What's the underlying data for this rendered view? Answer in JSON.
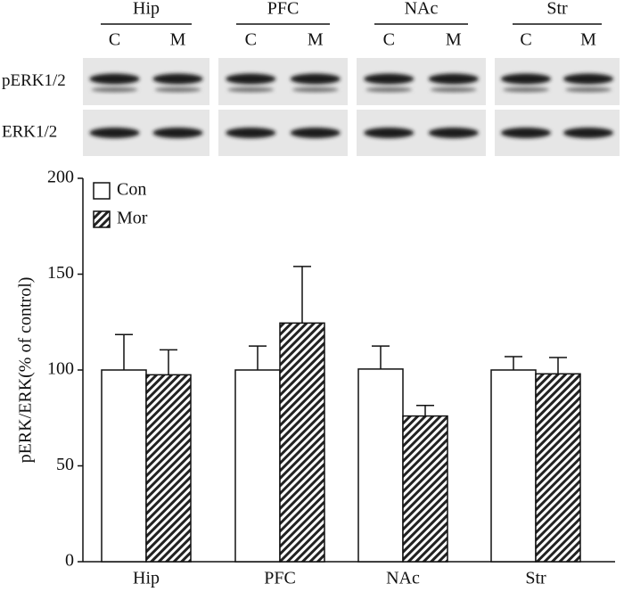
{
  "blot": {
    "groups": [
      {
        "name": "Hip",
        "lanes": [
          "C",
          "M"
        ]
      },
      {
        "name": "PFC",
        "lanes": [
          "C",
          "M"
        ]
      },
      {
        "name": "NAc",
        "lanes": [
          "C",
          "M"
        ]
      },
      {
        "name": "Str",
        "lanes": [
          "C",
          "M"
        ]
      }
    ],
    "rows": [
      "pERK1/2",
      "ERK1/2"
    ]
  },
  "chart_data": {
    "type": "bar",
    "y_label": "pERK/ERK(% of control)",
    "categories": [
      "Hip",
      "PFC",
      "NAc",
      "Str"
    ],
    "series": [
      {
        "name": "Con",
        "color": "#ffffff",
        "pattern": "none",
        "values": [
          100,
          100,
          100.5,
          100
        ],
        "errors": [
          18.5,
          12.5,
          12,
          7
        ]
      },
      {
        "name": "Mor",
        "color": "#222222",
        "pattern": "hatch",
        "values": [
          97.5,
          124.5,
          76,
          98
        ],
        "errors": [
          13,
          29.5,
          5.5,
          8.5
        ]
      }
    ],
    "ylim": [
      0,
      200
    ],
    "yticks": [
      0,
      50,
      100,
      150,
      200
    ],
    "legend": "top-left"
  }
}
